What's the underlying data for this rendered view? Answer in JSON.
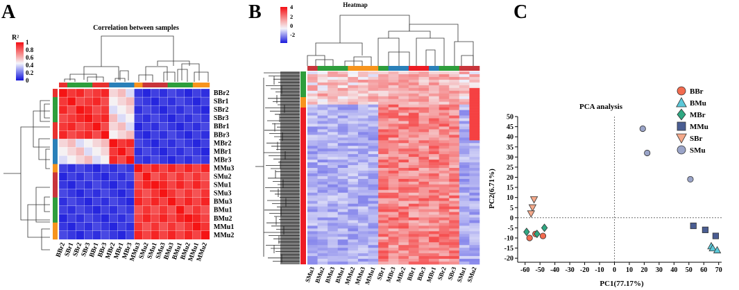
{
  "panels": {
    "A": {
      "letter": "A",
      "title": "Correlation between samples",
      "legend_title": "R²",
      "legend_ticks": [
        "1",
        "0.8",
        "0.6",
        "0.4",
        "0.2",
        "0"
      ],
      "row_labels": [
        "BBr2",
        "SBr1",
        "SBr2",
        "SBr3",
        "BBr1",
        "BBr3",
        "MBr2",
        "MBr1",
        "MBr3",
        "MMu3",
        "SMu2",
        "SMu1",
        "SMu3",
        "BMu3",
        "BMu1",
        "BMu2",
        "MMu1",
        "MMu2"
      ],
      "col_labels": [
        "BBr2",
        "SBr1",
        "SBr2",
        "SBr3",
        "BBr1",
        "BBr3",
        "MBr2",
        "MBr1",
        "MBr3",
        "MMu3",
        "SMu2",
        "SMu1",
        "SMu3",
        "BMu3",
        "BMu1",
        "BMu2",
        "MMu1",
        "MMu2"
      ]
    },
    "B": {
      "letter": "B",
      "title": "Heatmap",
      "legend_ticks": [
        "4",
        "2",
        "0",
        "-2"
      ],
      "col_labels": [
        "SMu3",
        "BMu2",
        "BMu3",
        "BMu1",
        "MMu2",
        "MMu3",
        "MMu1",
        "SBr1",
        "MBr3",
        "MBr2",
        "BBr1",
        "BBr3",
        "MBr1",
        "SBr2",
        "SBr3",
        "SMu1",
        "SMu2"
      ]
    },
    "C": {
      "letter": "C",
      "title": "PCA analysis"
    }
  },
  "groups": [
    {
      "code": "BBr",
      "color": "#e8312f"
    },
    {
      "code": "BMu",
      "color": "#f7941d"
    },
    {
      "code": "MBr",
      "color": "#2e9e3c"
    },
    {
      "code": "MMu",
      "color": "#2a80b9"
    },
    {
      "code": "SBr",
      "color": "#ed1c24"
    },
    {
      "code": "SMu",
      "color": "#c8353b"
    }
  ],
  "chart_data": {
    "type": "scatter",
    "title": "PCA analysis",
    "xlabel": "PC1(77.17%)",
    "ylabel": "PC2(6.71%)",
    "xlim": [
      -65,
      72
    ],
    "ylim": [
      -22,
      50
    ],
    "xticks": [
      -60,
      -50,
      -40,
      -30,
      -20,
      -10,
      0,
      10,
      20,
      30,
      40,
      50,
      60,
      70
    ],
    "yticks": [
      50,
      45,
      40,
      35,
      30,
      25,
      20,
      15,
      10,
      5,
      0,
      -5,
      -10,
      -15,
      -20
    ],
    "series": [
      {
        "name": "BBr",
        "marker": "circle",
        "color": "#f26b4f",
        "points": [
          [
            -57,
            -10
          ],
          [
            -53,
            -8
          ],
          [
            -48,
            -9
          ]
        ]
      },
      {
        "name": "BMu",
        "marker": "triangle-up",
        "color": "#5bc8d8",
        "points": [
          [
            65,
            -14
          ],
          [
            66,
            -15
          ],
          [
            69,
            -16
          ]
        ]
      },
      {
        "name": "MBr",
        "marker": "diamond",
        "color": "#2fa882",
        "points": [
          [
            -59,
            -7
          ],
          [
            -52,
            -8
          ],
          [
            -47,
            -5
          ]
        ]
      },
      {
        "name": "MMu",
        "marker": "square",
        "color": "#4a5d92",
        "points": [
          [
            53,
            -4
          ],
          [
            61,
            -6
          ],
          [
            68,
            -9
          ]
        ]
      },
      {
        "name": "SBr",
        "marker": "triangle-down",
        "color": "#f5a98a",
        "points": [
          [
            -54,
            9
          ],
          [
            -55,
            5
          ],
          [
            -56,
            2
          ]
        ]
      },
      {
        "name": "SMu",
        "marker": "circle",
        "color": "#9aa4c8",
        "points": [
          [
            19,
            44
          ],
          [
            22,
            32
          ],
          [
            51,
            19
          ]
        ]
      }
    ]
  }
}
